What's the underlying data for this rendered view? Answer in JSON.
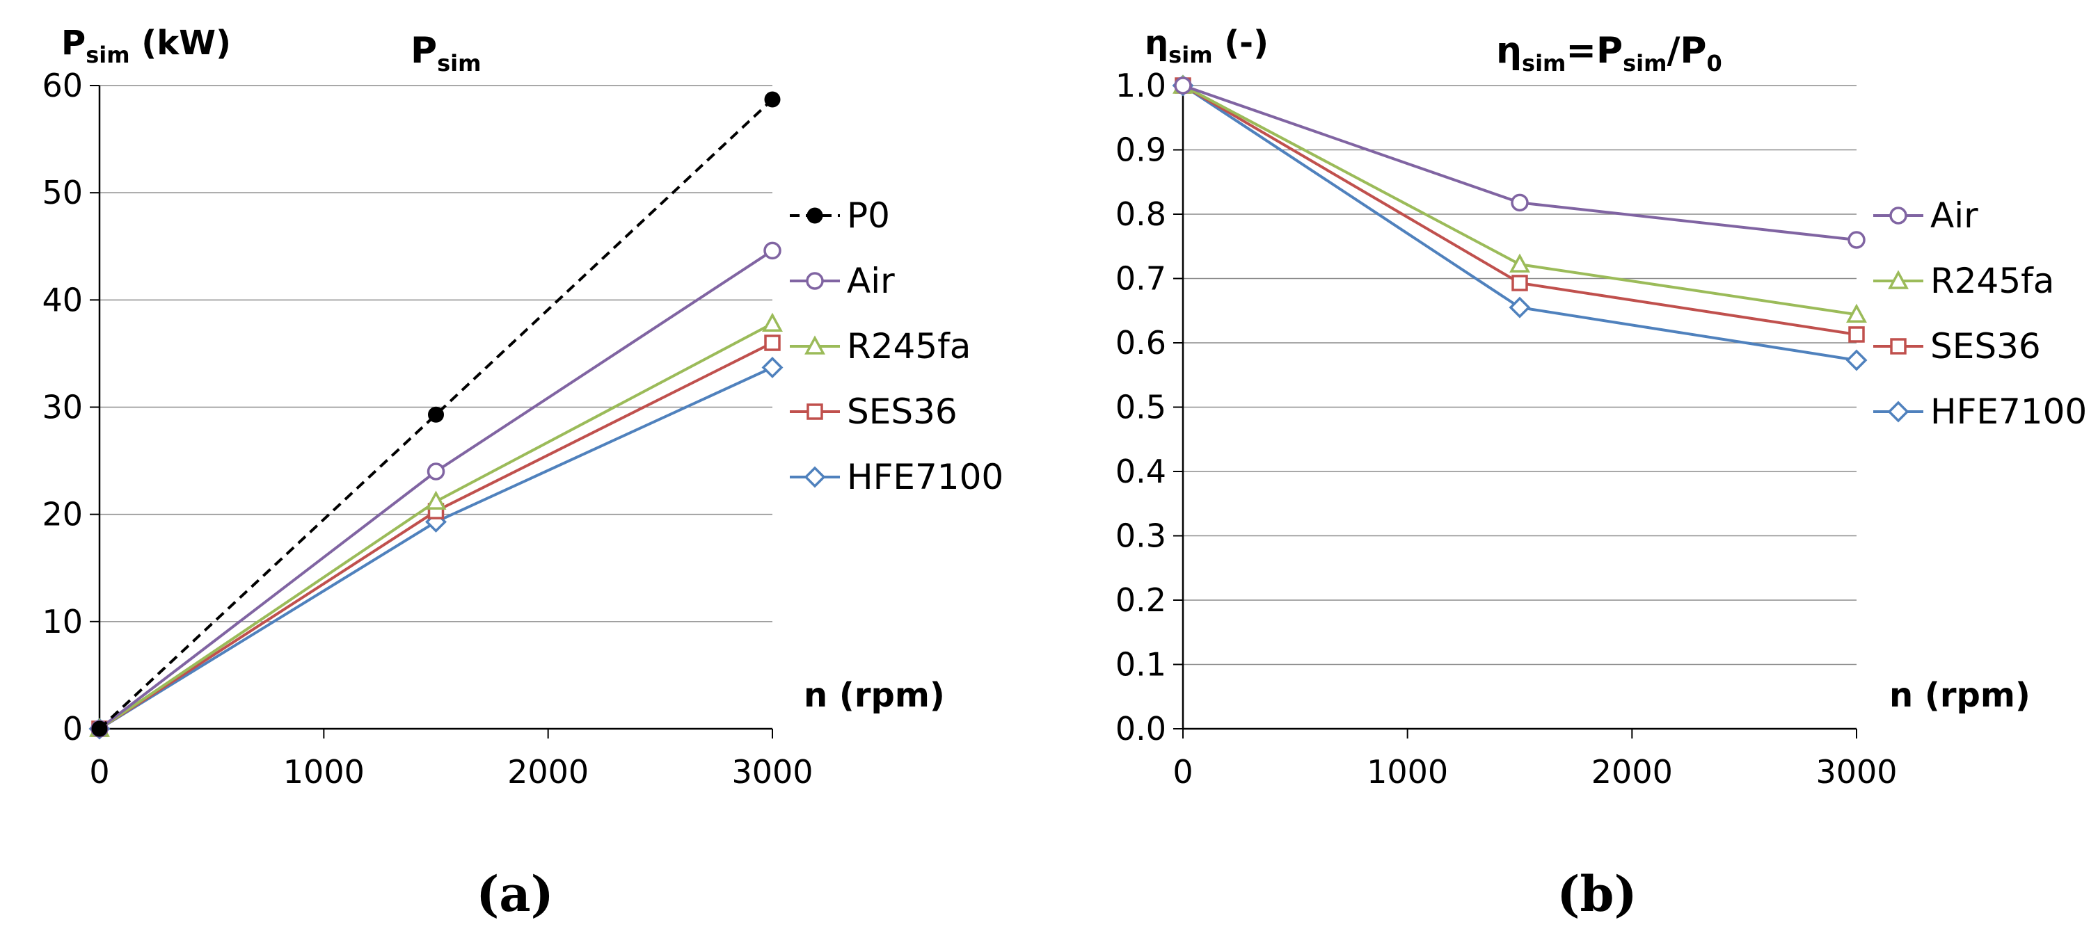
{
  "chart_data": [
    {
      "type": "line",
      "panel_label": "(a)",
      "title": {
        "main": "P",
        "sub": "sim"
      },
      "ylabel": {
        "main": "P",
        "sub": "sim",
        "suffix": " (kW)"
      },
      "xlabel": "n (rpm)",
      "x": [
        0,
        1500,
        3000
      ],
      "xlim": [
        0,
        3000
      ],
      "xticks": [
        "0",
        "1000",
        "2000",
        "3000"
      ],
      "ylim": [
        0,
        60
      ],
      "yticks": [
        "0",
        "10",
        "20",
        "30",
        "40",
        "50",
        "60"
      ],
      "grid": true,
      "legend_position": "right",
      "series": [
        {
          "name": "P0",
          "values": [
            0,
            29.3,
            58.7
          ],
          "color": "#000000",
          "dash": true,
          "marker": "dot"
        },
        {
          "name": "Air",
          "values": [
            0,
            24.0,
            44.6
          ],
          "color": "#8064A2",
          "dash": false,
          "marker": "circle"
        },
        {
          "name": "R245fa",
          "values": [
            0,
            21.2,
            37.8
          ],
          "color": "#9BBB59",
          "dash": false,
          "marker": "triangle"
        },
        {
          "name": "SES36",
          "values": [
            0,
            20.3,
            36.0
          ],
          "color": "#C0504D",
          "dash": false,
          "marker": "square"
        },
        {
          "name": "HFE7100",
          "values": [
            0,
            19.3,
            33.7
          ],
          "color": "#4F81BD",
          "dash": false,
          "marker": "diamond"
        }
      ]
    },
    {
      "type": "line",
      "panel_label": "(b)",
      "title": {
        "t1": "η",
        "t1sub": "sim",
        "t2": "=P",
        "t2sub": "sim",
        "t3": "/P",
        "t3sub": "0"
      },
      "ylabel": {
        "main": "η",
        "sub": "sim",
        "suffix": " (-)"
      },
      "xlabel": "n (rpm)",
      "x": [
        0,
        1500,
        3000
      ],
      "xlim": [
        0,
        3000
      ],
      "xticks": [
        "0",
        "1000",
        "2000",
        "3000"
      ],
      "ylim": [
        0,
        1
      ],
      "yticks": [
        "0.0",
        "0.1",
        "0.2",
        "0.3",
        "0.4",
        "0.5",
        "0.6",
        "0.7",
        "0.8",
        "0.9",
        "1.0"
      ],
      "grid": true,
      "legend_position": "right",
      "series": [
        {
          "name": "Air",
          "values": [
            1.0,
            0.818,
            0.76
          ],
          "color": "#8064A2",
          "dash": false,
          "marker": "circle"
        },
        {
          "name": "R245fa",
          "values": [
            1.0,
            0.722,
            0.644
          ],
          "color": "#9BBB59",
          "dash": false,
          "marker": "triangle"
        },
        {
          "name": "SES36",
          "values": [
            1.0,
            0.693,
            0.613
          ],
          "color": "#C0504D",
          "dash": false,
          "marker": "square"
        },
        {
          "name": "HFE7100",
          "values": [
            1.0,
            0.655,
            0.573
          ],
          "color": "#4F81BD",
          "dash": false,
          "marker": "diamond"
        }
      ]
    }
  ]
}
